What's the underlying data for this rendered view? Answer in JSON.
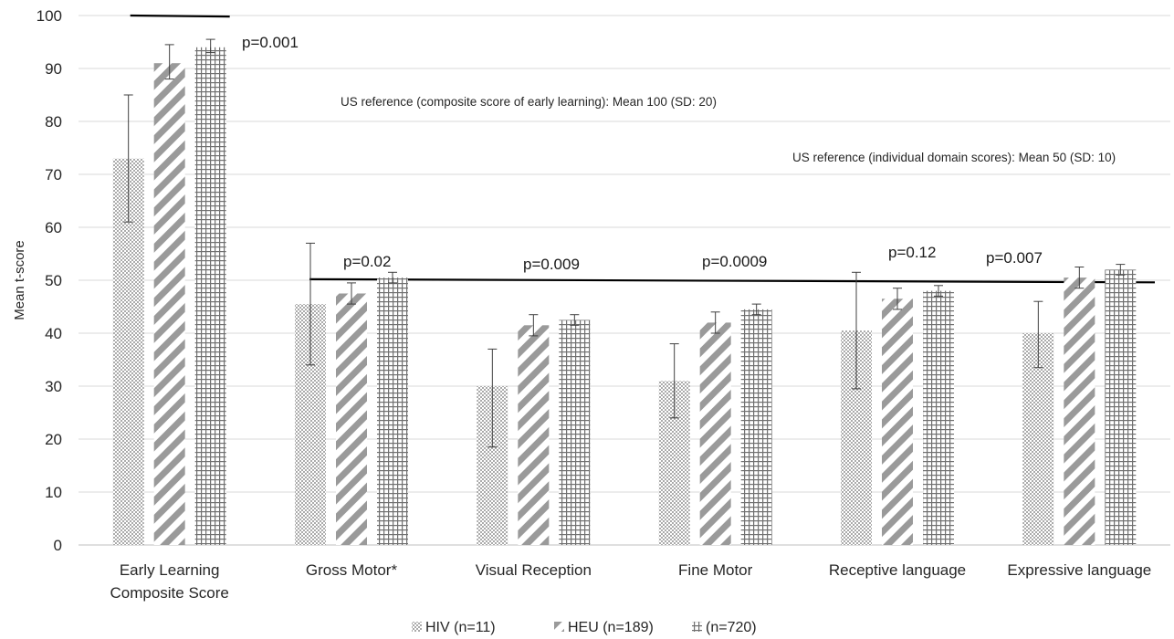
{
  "chart_data": {
    "type": "bar",
    "ylabel": "Mean t-score",
    "ylim": [
      0,
      100
    ],
    "yticks": [
      0,
      10,
      20,
      30,
      40,
      50,
      60,
      70,
      80,
      90,
      100
    ],
    "grid": true,
    "legend_position": "bottom",
    "categories": [
      [
        "Early Learning",
        "Composite Score"
      ],
      [
        "Gross Motor*"
      ],
      [
        "Visual Reception"
      ],
      [
        "Fine Motor"
      ],
      [
        "Receptive language"
      ],
      [
        "Expressive language"
      ]
    ],
    "series": [
      {
        "name": "HIV (n=11)",
        "pattern": "dots",
        "color": "#8c8c8c",
        "values": [
          73,
          45.5,
          30,
          31,
          40.5,
          40
        ],
        "err_low": [
          61,
          34,
          18.5,
          24,
          29.5,
          33.5
        ],
        "err_high": [
          85,
          57,
          37,
          38,
          51.5,
          46
        ]
      },
      {
        "name": "HEU (n=189)",
        "pattern": "diagonal",
        "color": "#8c8c8c",
        "values": [
          91,
          47.5,
          41.5,
          42,
          46.5,
          50.5
        ],
        "err_low": [
          88,
          45.5,
          39.5,
          40,
          44.5,
          48.5
        ],
        "err_high": [
          94.5,
          49.5,
          43.5,
          44,
          48.5,
          52.5
        ]
      },
      {
        "name": "(n=720)",
        "pattern": "grid",
        "color": "#8c8c8c",
        "values": [
          94,
          50.5,
          42.5,
          44.5,
          48,
          52
        ],
        "err_low": [
          93,
          49.5,
          41.5,
          43.5,
          47,
          51
        ],
        "err_high": [
          95.5,
          51.5,
          43.5,
          45.5,
          49,
          53
        ]
      }
    ],
    "reference_lines": [
      {
        "value": 100,
        "span": "first-category"
      },
      {
        "value": 50,
        "span": "other-categories"
      }
    ],
    "annotations": {
      "p_values": [
        "p=0.001",
        "p=0.02",
        "p=0.009",
        "p=0.0009",
        "p=0.12",
        "p=0.007"
      ],
      "ref_composite": "US reference (composite score of early learning): Mean 100 (SD: 20)",
      "ref_domain": "US reference (individual domain scores): Mean 50 (SD: 10)"
    }
  }
}
